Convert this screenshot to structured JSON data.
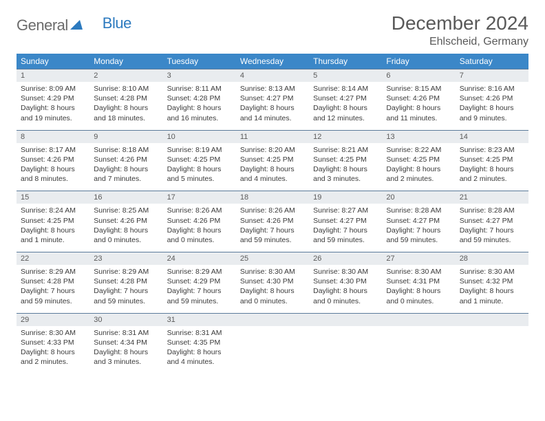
{
  "logo": {
    "word1": "General",
    "word2": "Blue"
  },
  "header": {
    "title": "December 2024",
    "location": "Ehlscheid, Germany"
  },
  "weekdays": [
    "Sunday",
    "Monday",
    "Tuesday",
    "Wednesday",
    "Thursday",
    "Friday",
    "Saturday"
  ],
  "style": {
    "header_bg": "#3b87c8",
    "header_fg": "#ffffff",
    "daynum_bg": "#e9ecef",
    "row_border": "#5a7a9a",
    "text_color": "#3a3a3a",
    "title_color": "#595959",
    "logo_gray": "#6b6b6b",
    "logo_blue": "#2c7abf",
    "page_bg": "#ffffff",
    "title_fontsize": 28,
    "location_fontsize": 16,
    "weekday_fontsize": 12,
    "cell_fontsize": 10.5
  },
  "weeks": [
    [
      {
        "n": "1",
        "sr": "Sunrise: 8:09 AM",
        "ss": "Sunset: 4:29 PM",
        "dl1": "Daylight: 8 hours",
        "dl2": "and 19 minutes."
      },
      {
        "n": "2",
        "sr": "Sunrise: 8:10 AM",
        "ss": "Sunset: 4:28 PM",
        "dl1": "Daylight: 8 hours",
        "dl2": "and 18 minutes."
      },
      {
        "n": "3",
        "sr": "Sunrise: 8:11 AM",
        "ss": "Sunset: 4:28 PM",
        "dl1": "Daylight: 8 hours",
        "dl2": "and 16 minutes."
      },
      {
        "n": "4",
        "sr": "Sunrise: 8:13 AM",
        "ss": "Sunset: 4:27 PM",
        "dl1": "Daylight: 8 hours",
        "dl2": "and 14 minutes."
      },
      {
        "n": "5",
        "sr": "Sunrise: 8:14 AM",
        "ss": "Sunset: 4:27 PM",
        "dl1": "Daylight: 8 hours",
        "dl2": "and 12 minutes."
      },
      {
        "n": "6",
        "sr": "Sunrise: 8:15 AM",
        "ss": "Sunset: 4:26 PM",
        "dl1": "Daylight: 8 hours",
        "dl2": "and 11 minutes."
      },
      {
        "n": "7",
        "sr": "Sunrise: 8:16 AM",
        "ss": "Sunset: 4:26 PM",
        "dl1": "Daylight: 8 hours",
        "dl2": "and 9 minutes."
      }
    ],
    [
      {
        "n": "8",
        "sr": "Sunrise: 8:17 AM",
        "ss": "Sunset: 4:26 PM",
        "dl1": "Daylight: 8 hours",
        "dl2": "and 8 minutes."
      },
      {
        "n": "9",
        "sr": "Sunrise: 8:18 AM",
        "ss": "Sunset: 4:26 PM",
        "dl1": "Daylight: 8 hours",
        "dl2": "and 7 minutes."
      },
      {
        "n": "10",
        "sr": "Sunrise: 8:19 AM",
        "ss": "Sunset: 4:25 PM",
        "dl1": "Daylight: 8 hours",
        "dl2": "and 5 minutes."
      },
      {
        "n": "11",
        "sr": "Sunrise: 8:20 AM",
        "ss": "Sunset: 4:25 PM",
        "dl1": "Daylight: 8 hours",
        "dl2": "and 4 minutes."
      },
      {
        "n": "12",
        "sr": "Sunrise: 8:21 AM",
        "ss": "Sunset: 4:25 PM",
        "dl1": "Daylight: 8 hours",
        "dl2": "and 3 minutes."
      },
      {
        "n": "13",
        "sr": "Sunrise: 8:22 AM",
        "ss": "Sunset: 4:25 PM",
        "dl1": "Daylight: 8 hours",
        "dl2": "and 2 minutes."
      },
      {
        "n": "14",
        "sr": "Sunrise: 8:23 AM",
        "ss": "Sunset: 4:25 PM",
        "dl1": "Daylight: 8 hours",
        "dl2": "and 2 minutes."
      }
    ],
    [
      {
        "n": "15",
        "sr": "Sunrise: 8:24 AM",
        "ss": "Sunset: 4:25 PM",
        "dl1": "Daylight: 8 hours",
        "dl2": "and 1 minute."
      },
      {
        "n": "16",
        "sr": "Sunrise: 8:25 AM",
        "ss": "Sunset: 4:26 PM",
        "dl1": "Daylight: 8 hours",
        "dl2": "and 0 minutes."
      },
      {
        "n": "17",
        "sr": "Sunrise: 8:26 AM",
        "ss": "Sunset: 4:26 PM",
        "dl1": "Daylight: 8 hours",
        "dl2": "and 0 minutes."
      },
      {
        "n": "18",
        "sr": "Sunrise: 8:26 AM",
        "ss": "Sunset: 4:26 PM",
        "dl1": "Daylight: 7 hours",
        "dl2": "and 59 minutes."
      },
      {
        "n": "19",
        "sr": "Sunrise: 8:27 AM",
        "ss": "Sunset: 4:27 PM",
        "dl1": "Daylight: 7 hours",
        "dl2": "and 59 minutes."
      },
      {
        "n": "20",
        "sr": "Sunrise: 8:28 AM",
        "ss": "Sunset: 4:27 PM",
        "dl1": "Daylight: 7 hours",
        "dl2": "and 59 minutes."
      },
      {
        "n": "21",
        "sr": "Sunrise: 8:28 AM",
        "ss": "Sunset: 4:27 PM",
        "dl1": "Daylight: 7 hours",
        "dl2": "and 59 minutes."
      }
    ],
    [
      {
        "n": "22",
        "sr": "Sunrise: 8:29 AM",
        "ss": "Sunset: 4:28 PM",
        "dl1": "Daylight: 7 hours",
        "dl2": "and 59 minutes."
      },
      {
        "n": "23",
        "sr": "Sunrise: 8:29 AM",
        "ss": "Sunset: 4:28 PM",
        "dl1": "Daylight: 7 hours",
        "dl2": "and 59 minutes."
      },
      {
        "n": "24",
        "sr": "Sunrise: 8:29 AM",
        "ss": "Sunset: 4:29 PM",
        "dl1": "Daylight: 7 hours",
        "dl2": "and 59 minutes."
      },
      {
        "n": "25",
        "sr": "Sunrise: 8:30 AM",
        "ss": "Sunset: 4:30 PM",
        "dl1": "Daylight: 8 hours",
        "dl2": "and 0 minutes."
      },
      {
        "n": "26",
        "sr": "Sunrise: 8:30 AM",
        "ss": "Sunset: 4:30 PM",
        "dl1": "Daylight: 8 hours",
        "dl2": "and 0 minutes."
      },
      {
        "n": "27",
        "sr": "Sunrise: 8:30 AM",
        "ss": "Sunset: 4:31 PM",
        "dl1": "Daylight: 8 hours",
        "dl2": "and 0 minutes."
      },
      {
        "n": "28",
        "sr": "Sunrise: 8:30 AM",
        "ss": "Sunset: 4:32 PM",
        "dl1": "Daylight: 8 hours",
        "dl2": "and 1 minute."
      }
    ],
    [
      {
        "n": "29",
        "sr": "Sunrise: 8:30 AM",
        "ss": "Sunset: 4:33 PM",
        "dl1": "Daylight: 8 hours",
        "dl2": "and 2 minutes."
      },
      {
        "n": "30",
        "sr": "Sunrise: 8:31 AM",
        "ss": "Sunset: 4:34 PM",
        "dl1": "Daylight: 8 hours",
        "dl2": "and 3 minutes."
      },
      {
        "n": "31",
        "sr": "Sunrise: 8:31 AM",
        "ss": "Sunset: 4:35 PM",
        "dl1": "Daylight: 8 hours",
        "dl2": "and 4 minutes."
      },
      {
        "empty": true
      },
      {
        "empty": true
      },
      {
        "empty": true
      },
      {
        "empty": true
      }
    ]
  ]
}
